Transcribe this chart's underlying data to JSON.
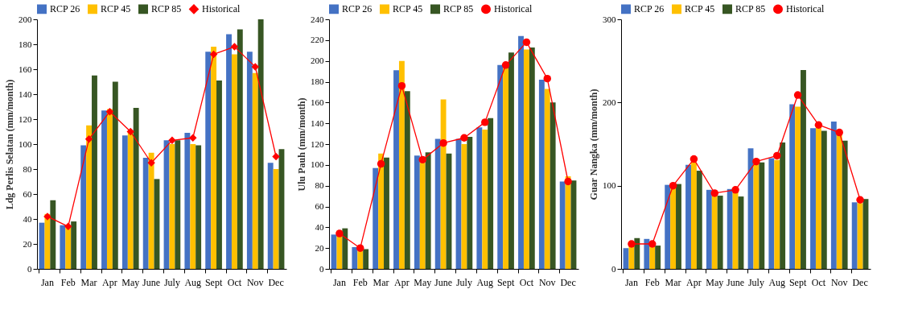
{
  "chart_data": [
    {
      "type": "bar",
      "ylabel": "Ldg Perlis Selatan  (mm/month)",
      "categories": [
        "Jan",
        "Feb",
        "Mar",
        "Apr",
        "May",
        "June",
        "July",
        "Aug",
        "Sept",
        "Oct",
        "Nov",
        "Dec"
      ],
      "ylim": [
        0,
        200
      ],
      "yticks": [
        0,
        20,
        40,
        60,
        80,
        100,
        120,
        140,
        160,
        180,
        200
      ],
      "grid": false,
      "legend": "top",
      "series": [
        {
          "name": "RCP 26",
          "color": "#4472c4",
          "values": [
            37,
            35,
            99,
            127,
            107,
            89,
            103,
            109,
            174,
            188,
            174,
            85
          ]
        },
        {
          "name": "RCP 45",
          "color": "#ffc000",
          "values": [
            44,
            33,
            115,
            128,
            110,
            93,
            100,
            100,
            178,
            172,
            157,
            80
          ]
        },
        {
          "name": "RCP 85",
          "color": "#375623",
          "values": [
            55,
            38,
            155,
            150,
            129,
            72,
            103,
            99,
            151,
            192,
            200,
            96
          ]
        },
        {
          "name": "Historical",
          "type": "line",
          "marker": "diamond",
          "color": "#ff0000",
          "values": [
            42,
            34,
            104,
            126,
            110,
            85,
            103,
            105,
            172,
            178,
            162,
            90
          ]
        }
      ]
    },
    {
      "type": "bar",
      "ylabel": "Ulu Pauh  (mm/month)",
      "categories": [
        "Jan",
        "Feb",
        "Mar",
        "Apr",
        "May",
        "June",
        "July",
        "Aug",
        "Sept",
        "Oct",
        "Nov",
        "Dec"
      ],
      "ylim": [
        0,
        240
      ],
      "yticks": [
        0,
        20,
        40,
        60,
        80,
        100,
        120,
        140,
        160,
        180,
        200,
        220,
        240
      ],
      "grid": false,
      "legend": "top",
      "series": [
        {
          "name": "RCP 26",
          "color": "#4472c4",
          "values": [
            33,
            21,
            97,
            191,
            109,
            125,
            125,
            136,
            196,
            224,
            182,
            84
          ]
        },
        {
          "name": "RCP 45",
          "color": "#ffc000",
          "values": [
            37,
            17,
            111,
            200,
            102,
            163,
            120,
            134,
            193,
            211,
            173,
            89
          ]
        },
        {
          "name": "RCP 85",
          "color": "#375623",
          "values": [
            39,
            19,
            107,
            171,
            112,
            111,
            127,
            145,
            208,
            213,
            160,
            85
          ]
        },
        {
          "name": "Historical",
          "type": "line",
          "marker": "circle",
          "color": "#ff0000",
          "values": [
            34,
            20,
            101,
            176,
            105,
            121,
            126,
            141,
            196,
            218,
            183,
            84
          ]
        }
      ]
    },
    {
      "type": "bar",
      "ylabel": "Guar Nangka  (mm/month)",
      "categories": [
        "Jan",
        "Feb",
        "Mar",
        "Apr",
        "May",
        "June",
        "July",
        "Aug",
        "Sept",
        "Oct",
        "Nov",
        "Dec"
      ],
      "ylim": [
        0,
        300
      ],
      "yticks": [
        0,
        100,
        200,
        300
      ],
      "grid": false,
      "legend": "top",
      "series": [
        {
          "name": "RCP 26",
          "color": "#4472c4",
          "values": [
            25,
            36,
            101,
            125,
            95,
            96,
            145,
            133,
            198,
            169,
            177,
            80
          ]
        },
        {
          "name": "RCP 45",
          "color": "#ffc000",
          "values": [
            29,
            29,
            99,
            128,
            89,
            94,
            126,
            131,
            195,
            171,
            167,
            79
          ]
        },
        {
          "name": "RCP 85",
          "color": "#375623",
          "values": [
            37,
            28,
            102,
            118,
            88,
            87,
            128,
            152,
            239,
            166,
            154,
            84
          ]
        },
        {
          "name": "Historical",
          "type": "line",
          "marker": "circle",
          "color": "#ff0000",
          "values": [
            30,
            30,
            100,
            132,
            91,
            95,
            129,
            136,
            209,
            173,
            164,
            83
          ]
        }
      ]
    }
  ]
}
